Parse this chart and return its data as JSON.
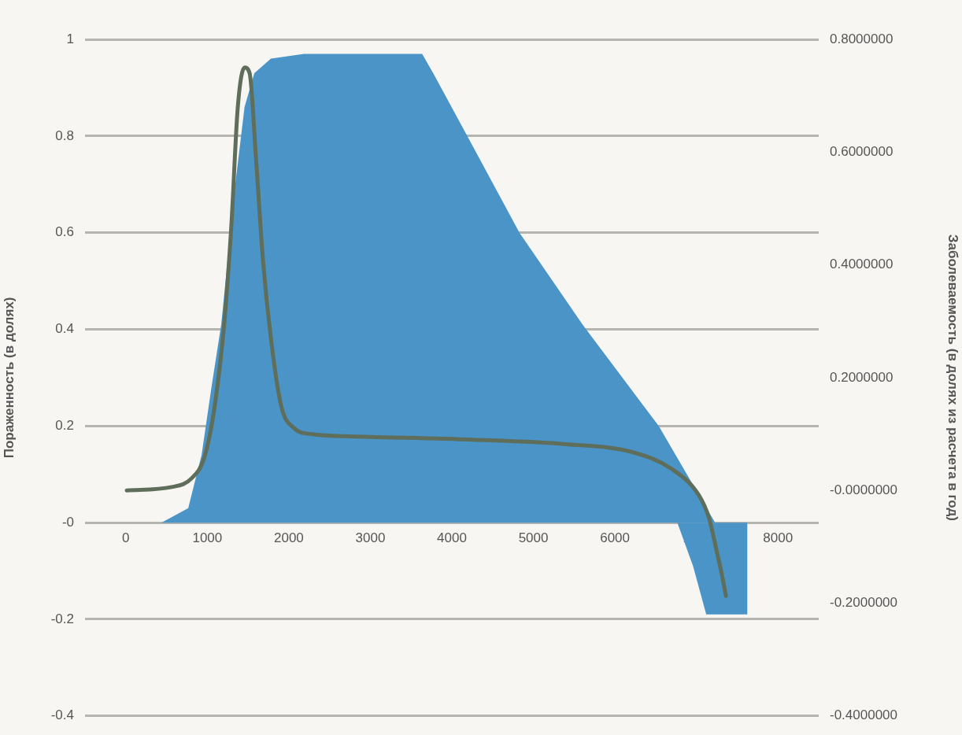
{
  "chart_data": {
    "type": "area",
    "ylabel": "Пораженность (в долях)",
    "y2label": "Заболеваемость (в долях из расчета в год)",
    "xlim": [
      -500,
      8500
    ],
    "xticks": [
      0,
      1000,
      2000,
      3000,
      4000,
      5000,
      6000,
      7000,
      8000
    ],
    "ylim": [
      -0.4,
      1
    ],
    "yticks": [
      -0.4,
      -0.2,
      {
        "value": 0,
        "label": "-0"
      },
      0.2,
      0.4,
      0.6,
      0.8,
      1
    ],
    "y2lim": [
      -0.4,
      0.8
    ],
    "y2ticks": [
      {
        "value": -0.4,
        "label": "-0.4000000"
      },
      {
        "value": -0.2,
        "label": "-0.2000000"
      },
      {
        "value": 0,
        "label": "-0.0000000"
      },
      {
        "value": 0.2,
        "label": "0.2000000"
      },
      {
        "value": 0.4,
        "label": "0.4000000"
      },
      {
        "value": 0.6,
        "label": "0.6000000"
      },
      {
        "value": 0.8,
        "label": "0.8000000"
      }
    ],
    "grid": "y",
    "legend": false,
    "series": [
      {
        "color": "#4a94c8",
        "x": [
          437,
          766,
          930,
          1051,
          1171,
          1254,
          1336,
          1457,
          1577,
          1780,
          2186,
          3635,
          3771,
          4157,
          4829,
          5602,
          6537,
          7229
        ],
        "values": [
          0,
          0.03,
          0.14,
          0.28,
          0.41,
          0.55,
          0.69,
          0.86,
          0.93,
          0.96,
          0.97,
          0.97,
          0.93,
          0.81,
          0.6,
          0.41,
          0.2,
          0
        ]
      },
      {
        "color": "#4a94c8",
        "x": [
          6766,
          6959,
          7120,
          7626,
          7626
        ],
        "values": [
          0,
          -0.09,
          -0.19,
          -0.19,
          0
        ]
      },
      {
        "type": "line",
        "axis": "y2",
        "color": "#5f6e5a",
        "x": [
          12,
          563,
          804,
          969,
          1091,
          1210,
          1295,
          1374,
          1457,
          1519,
          1597,
          1682,
          1780,
          1906,
          2068,
          2273,
          3000,
          4254,
          5398,
          6212,
          6698,
          7027,
          7152,
          7249,
          7313,
          7362
        ],
        "values": [
          0,
          0.006,
          0.021,
          0.061,
          0.15,
          0.3,
          0.47,
          0.68,
          0.75,
          0.74,
          0.59,
          0.41,
          0.27,
          0.15,
          0.11,
          0.1,
          0.095,
          0.09,
          0.082,
          0.068,
          0.038,
          -0.008,
          -0.048,
          -0.108,
          -0.15,
          -0.187
        ]
      }
    ]
  }
}
